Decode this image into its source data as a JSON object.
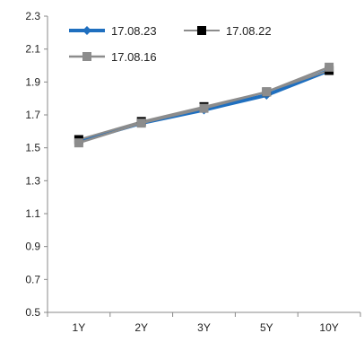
{
  "chart_data": {
    "type": "line",
    "title": "",
    "xlabel": "",
    "ylabel": "",
    "categories": [
      "1Y",
      "2Y",
      "3Y",
      "5Y",
      "10Y"
    ],
    "ylim": [
      0.5,
      2.3
    ],
    "yticks": [
      "0.5",
      "0.7",
      "0.9",
      "1.1",
      "1.3",
      "1.5",
      "1.7",
      "1.9",
      "2.1",
      "2.3"
    ],
    "grid": false,
    "legend_position": "top-left",
    "series": [
      {
        "name": "17.08.23",
        "values": [
          1.54,
          1.65,
          1.73,
          1.82,
          1.97
        ],
        "color": "#1f6fbf",
        "marker": "diamond"
      },
      {
        "name": "17.08.22",
        "values": [
          1.55,
          1.66,
          1.75,
          1.84,
          1.97
        ],
        "color": "#000000",
        "line_color": "#8c8c8c",
        "marker": "square"
      },
      {
        "name": "17.08.16",
        "values": [
          1.53,
          1.65,
          1.74,
          1.84,
          1.99
        ],
        "color": "#8c8c8c",
        "marker": "square"
      }
    ]
  }
}
